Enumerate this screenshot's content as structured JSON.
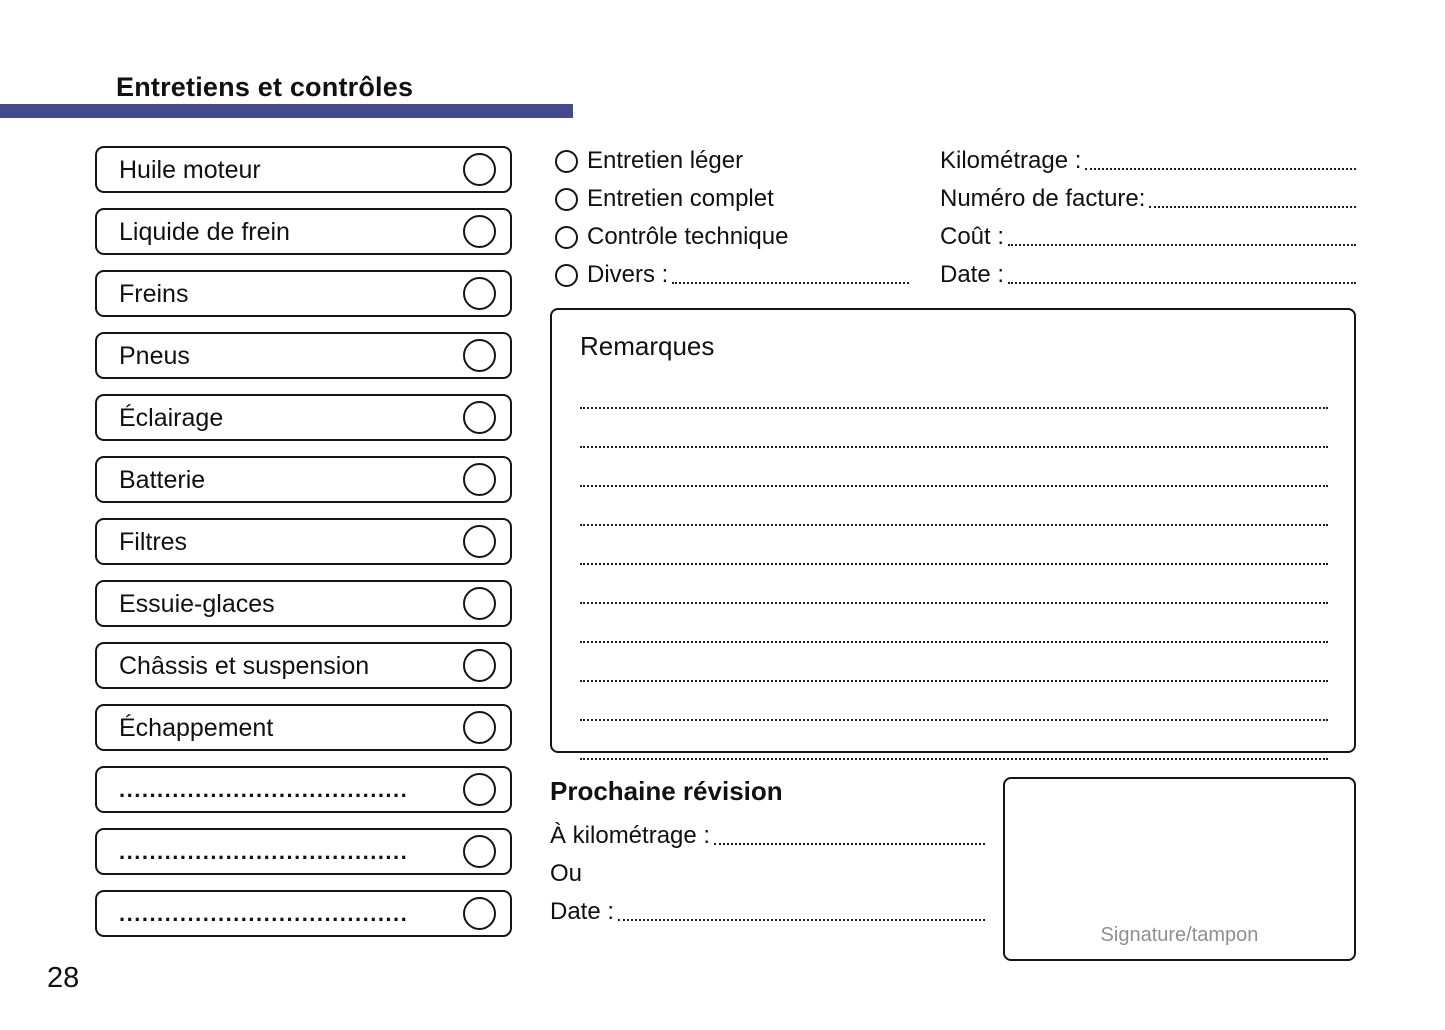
{
  "page": {
    "title": "Entretiens et contrôles",
    "number": "28"
  },
  "colors": {
    "accent_bar": "#454A8C",
    "border": "#151515",
    "signature_text": "#8f8f8f"
  },
  "checklist": {
    "items": [
      {
        "label": "Huile moteur",
        "placeholder": false
      },
      {
        "label": "Liquide de frein",
        "placeholder": false
      },
      {
        "label": "Freins",
        "placeholder": false
      },
      {
        "label": "Pneus",
        "placeholder": false
      },
      {
        "label": "Éclairage",
        "placeholder": false
      },
      {
        "label": "Batterie",
        "placeholder": false
      },
      {
        "label": "Filtres",
        "placeholder": false
      },
      {
        "label": "Essuie-glaces",
        "placeholder": false
      },
      {
        "label": "Châssis et suspension",
        "placeholder": false
      },
      {
        "label": "Échappement",
        "placeholder": false
      },
      {
        "label": "......................................",
        "placeholder": true
      },
      {
        "label": "......................................",
        "placeholder": true
      },
      {
        "label": "......................................",
        "placeholder": true
      }
    ]
  },
  "service_options": [
    {
      "label": "Entretien léger",
      "has_leader": false
    },
    {
      "label": "Entretien complet",
      "has_leader": false
    },
    {
      "label": "Contrôle technique",
      "has_leader": false
    },
    {
      "label": "Divers :",
      "has_leader": true
    }
  ],
  "invoice_fields": [
    {
      "label": "Kilométrage :"
    },
    {
      "label": "Numéro de facture:"
    },
    {
      "label": "Coût :"
    },
    {
      "label": "Date :"
    }
  ],
  "remarks": {
    "title": "Remarques",
    "line_count": 10
  },
  "next_service": {
    "title": "Prochaine révision",
    "fields": [
      {
        "label": "À kilométrage :",
        "has_leader": true
      },
      {
        "label": "Ou",
        "has_leader": false
      },
      {
        "label": "Date :",
        "has_leader": true
      }
    ]
  },
  "signature": {
    "label": "Signature/tampon"
  }
}
